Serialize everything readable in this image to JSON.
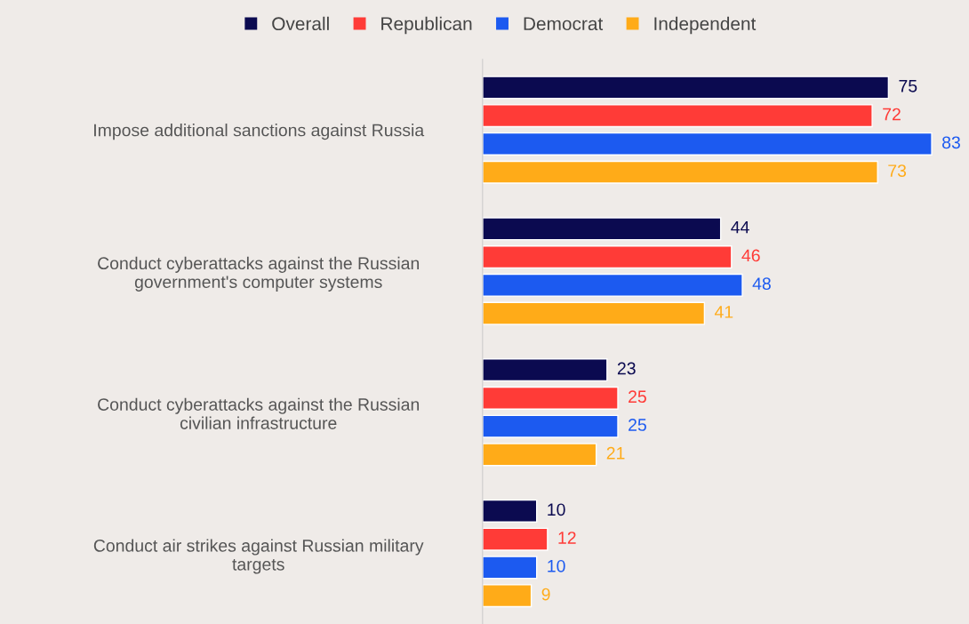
{
  "chart_data": {
    "type": "bar",
    "orientation": "horizontal",
    "categories": [
      "Impose additional sanctions against Russia",
      "Conduct cyberattacks against the Russian\ngovernment's computer systems",
      "Conduct cyberattacks against the Russian\ncivilian infrastructure",
      "Conduct air strikes against Russian military\ntargets"
    ],
    "series": [
      {
        "name": "Overall",
        "color": "#0b0a50",
        "values": [
          75,
          44,
          23,
          10
        ]
      },
      {
        "name": "Republican",
        "color": "#ff3b37",
        "values": [
          72,
          46,
          25,
          12
        ]
      },
      {
        "name": "Democrat",
        "color": "#1c5af0",
        "values": [
          83,
          48,
          25,
          10
        ]
      },
      {
        "name": "Independent",
        "color": "#ffab18",
        "values": [
          73,
          41,
          21,
          9
        ]
      }
    ],
    "data_labels": true,
    "legend": "top",
    "grid": false,
    "tick_labels": "y"
  }
}
